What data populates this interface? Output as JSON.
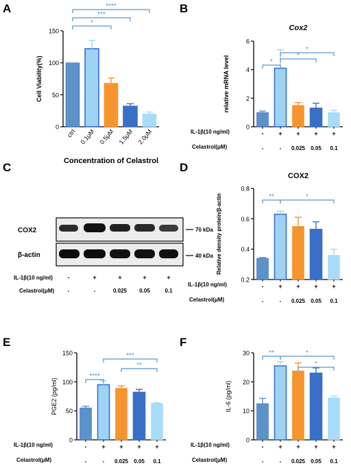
{
  "colors": {
    "ctrl": "#5b93c9",
    "il1b": "#9fd3f5",
    "c025": "#f7942e",
    "c05": "#3a6fc7",
    "c01": "#a8dcf8",
    "sig": "#5b93c9"
  },
  "panels": {
    "A": {
      "label": "A"
    },
    "B": {
      "label": "B"
    },
    "C": {
      "label": "C"
    },
    "D": {
      "label": "D"
    },
    "E": {
      "label": "E"
    },
    "F": {
      "label": "F"
    }
  },
  "treatment_table": {
    "il1b_label": "IL-1β(10 ng/ml)",
    "celastrol_label": "Celastrol(μM)",
    "il1b_row": [
      "-",
      "+",
      "+",
      "+",
      "+"
    ],
    "celastrol_row": [
      "-",
      "-",
      "0.025",
      "0.05",
      "0.1"
    ]
  },
  "western_blot": {
    "rows": [
      "COX2",
      "β-actin"
    ],
    "markers": [
      "70 kDa",
      "40 kDa"
    ]
  },
  "chart_data": [
    {
      "panel": "A",
      "type": "bar",
      "title": "",
      "xlabel": "Concentration of Celastrol",
      "ylabel": "Cell Viability(%)",
      "categories": [
        "ctrl",
        "0.1μM",
        "0.5μM",
        "1.5μM",
        "2.0μM"
      ],
      "values": [
        100,
        122,
        68,
        32,
        20
      ],
      "errors": [
        0,
        13,
        8,
        4,
        3
      ],
      "ylim": [
        0,
        150
      ],
      "yticks": [
        0,
        50,
        100,
        150
      ],
      "significance": [
        {
          "from": 0,
          "to": 2,
          "label": "*"
        },
        {
          "from": 0,
          "to": 3,
          "label": "***"
        },
        {
          "from": 0,
          "to": 4,
          "label": "****"
        }
      ]
    },
    {
      "panel": "B",
      "type": "bar",
      "title": "Cox2",
      "xlabel": "",
      "ylabel": "relative mRNA level",
      "categories": [
        "-/-",
        "+/-",
        "+/0.025",
        "+/0.05",
        "+/0.1"
      ],
      "values": [
        1.0,
        4.1,
        1.5,
        1.3,
        1.0
      ],
      "errors": [
        0.1,
        1.3,
        0.2,
        0.35,
        0.15
      ],
      "ylim": [
        0,
        6
      ],
      "yticks": [
        0,
        2,
        4,
        6
      ],
      "significance": [
        {
          "from": 0,
          "to": 1,
          "label": "*"
        },
        {
          "from": 1,
          "to": 3,
          "label": "*"
        },
        {
          "from": 1,
          "to": 4,
          "label": "*"
        }
      ]
    },
    {
      "panel": "D",
      "type": "bar",
      "title": "COX2",
      "xlabel": "",
      "ylabel": "Relative density protein/β-actin",
      "categories": [
        "-/-",
        "+/-",
        "+/0.025",
        "+/0.05",
        "+/0.1"
      ],
      "values": [
        0.34,
        0.63,
        0.55,
        0.53,
        0.36
      ],
      "errors": [
        0.005,
        0.02,
        0.06,
        0.05,
        0.04
      ],
      "ylim": [
        0.2,
        0.8
      ],
      "yticks": [
        0.2,
        0.4,
        0.6,
        0.8
      ],
      "significance": [
        {
          "from": 0,
          "to": 1,
          "label": "**"
        },
        {
          "from": 1,
          "to": 4,
          "label": "*"
        }
      ]
    },
    {
      "panel": "E",
      "type": "bar",
      "title": "",
      "xlabel": "",
      "ylabel": "PGE2 (pg/ml)",
      "categories": [
        "-/-",
        "+/-",
        "+/0.025",
        "+/0.05",
        "+/0.1"
      ],
      "values": [
        55,
        95,
        89,
        82,
        63
      ],
      "errors": [
        3,
        7,
        4,
        5,
        1
      ],
      "ylim": [
        0,
        150
      ],
      "yticks": [
        0,
        50,
        100,
        150
      ],
      "significance": [
        {
          "from": 0,
          "to": 1,
          "label": "****"
        },
        {
          "from": 1,
          "to": 4,
          "label": "***"
        },
        {
          "from": 2,
          "to": 4,
          "label": "**"
        }
      ]
    },
    {
      "panel": "F",
      "type": "bar",
      "title": "",
      "xlabel": "",
      "ylabel": "IL-6 (pg/ml)",
      "categories": [
        "-/-",
        "+/-",
        "+/0.025",
        "+/0.05",
        "+/0.1"
      ],
      "values": [
        12.5,
        25.5,
        23.8,
        23.0,
        14.5
      ],
      "errors": [
        1.8,
        1.5,
        2.7,
        1.8,
        0.6
      ],
      "ylim": [
        0,
        30
      ],
      "yticks": [
        0,
        10,
        20,
        30
      ],
      "significance": [
        {
          "from": 0,
          "to": 1,
          "label": "**"
        },
        {
          "from": 1,
          "to": 4,
          "label": "*"
        },
        {
          "from": 2,
          "to": 4,
          "label": "*"
        }
      ]
    }
  ]
}
